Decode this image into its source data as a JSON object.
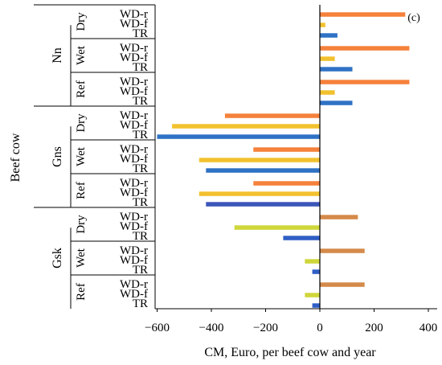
{
  "chart_data": {
    "type": "bar",
    "orientation": "horizontal",
    "panel_label": "(c)",
    "xlabel": "CM, Euro, per beef cow and year",
    "ylabel": "Beef cow",
    "xlim": [
      -650,
      400
    ],
    "xticks": [
      -600,
      -400,
      -200,
      0,
      200,
      400
    ],
    "xtick_labels": [
      "−600",
      "−400",
      "−200",
      "0",
      "200",
      "400"
    ],
    "grid": false,
    "legend": "none",
    "groups": [
      {
        "name": "Nn",
        "subgroups": [
          {
            "name": "Dry",
            "bars": [
              {
                "label": "WD-r",
                "value": 315,
                "color": "#f5813b"
              },
              {
                "label": "WD-f",
                "value": 20,
                "color": "#f2c12e"
              },
              {
                "label": "TR",
                "value": 65,
                "color": "#2f72c5"
              }
            ]
          },
          {
            "name": "Wet",
            "bars": [
              {
                "label": "WD-r",
                "value": 330,
                "color": "#f5813b"
              },
              {
                "label": "WD-f",
                "value": 55,
                "color": "#f2c12e"
              },
              {
                "label": "TR",
                "value": 120,
                "color": "#2f72c5"
              }
            ]
          },
          {
            "name": "Ref",
            "bars": [
              {
                "label": "WD-r",
                "value": 330,
                "color": "#f5813b"
              },
              {
                "label": "WD-f",
                "value": 55,
                "color": "#f2c12e"
              },
              {
                "label": "TR",
                "value": 120,
                "color": "#2f72c5"
              }
            ]
          }
        ]
      },
      {
        "name": "Gns",
        "subgroups": [
          {
            "name": "Dry",
            "bars": [
              {
                "label": "WD-r",
                "value": -350,
                "color": "#f5813b"
              },
              {
                "label": "WD-f",
                "value": -545,
                "color": "#f2c12e"
              },
              {
                "label": "TR",
                "value": -600,
                "color": "#2f72c5"
              }
            ]
          },
          {
            "name": "Wet",
            "bars": [
              {
                "label": "WD-r",
                "value": -245,
                "color": "#f5813b"
              },
              {
                "label": "WD-f",
                "value": -445,
                "color": "#f2c12e"
              },
              {
                "label": "TR",
                "value": -420,
                "color": "#2f72c5"
              }
            ]
          },
          {
            "name": "Ref",
            "bars": [
              {
                "label": "WD-r",
                "value": -245,
                "color": "#f5813b"
              },
              {
                "label": "WD-f",
                "value": -445,
                "color": "#f2c12e"
              },
              {
                "label": "TR",
                "value": -420,
                "color": "#3a56b8"
              }
            ]
          }
        ]
      },
      {
        "name": "Gsk",
        "subgroups": [
          {
            "name": "Dry",
            "bars": [
              {
                "label": "WD-r",
                "value": 140,
                "color": "#d48a4a"
              },
              {
                "label": "WD-f",
                "value": -315,
                "color": "#cfd63a"
              },
              {
                "label": "TR",
                "value": -135,
                "color": "#2f5fc5"
              }
            ]
          },
          {
            "name": "Wet",
            "bars": [
              {
                "label": "WD-r",
                "value": 165,
                "color": "#d48a4a"
              },
              {
                "label": "WD-f",
                "value": -55,
                "color": "#cfd63a"
              },
              {
                "label": "TR",
                "value": -28,
                "color": "#2f5fc5"
              }
            ]
          },
          {
            "name": "Ref",
            "bars": [
              {
                "label": "WD-r",
                "value": 165,
                "color": "#d48a4a"
              },
              {
                "label": "WD-f",
                "value": -55,
                "color": "#cfd63a"
              },
              {
                "label": "TR",
                "value": -28,
                "color": "#2f5fc5"
              }
            ]
          }
        ]
      }
    ]
  }
}
